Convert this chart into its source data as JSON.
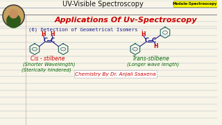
{
  "bg_color": "#f8f5e8",
  "line_color": "#b0b8c8",
  "header_text": "UV-Visible Spectroscopy",
  "header_color": "#111111",
  "module_text": "Module-Spectroscopy",
  "module_bg": "#ffff00",
  "title_text": "Applications Of Uv-Spectroscopy",
  "title_color": "#cc0000",
  "point_text": "(6) Detection of Geometrical Isomers -",
  "point_color": "#1a1a8c",
  "cis_label": "Cis - stilbene",
  "cis_color": "#cc0000",
  "cis_sub": "(Shorter Wavelength)",
  "cis_sub2": "(Sterically hindered)",
  "cis_sub_color": "#006600",
  "trans_label": "Trans-stilbene",
  "trans_color": "#006600",
  "trans_sub": "(Longer wave length)",
  "trans_sub_color": "#006600",
  "footer_text": "Chemistry By Dr. Anjali Ssaxena",
  "footer_color": "#cc0000",
  "h_color": "#cc0000",
  "bond_color": "#1a1a8c",
  "ring_color": "#1a6060"
}
